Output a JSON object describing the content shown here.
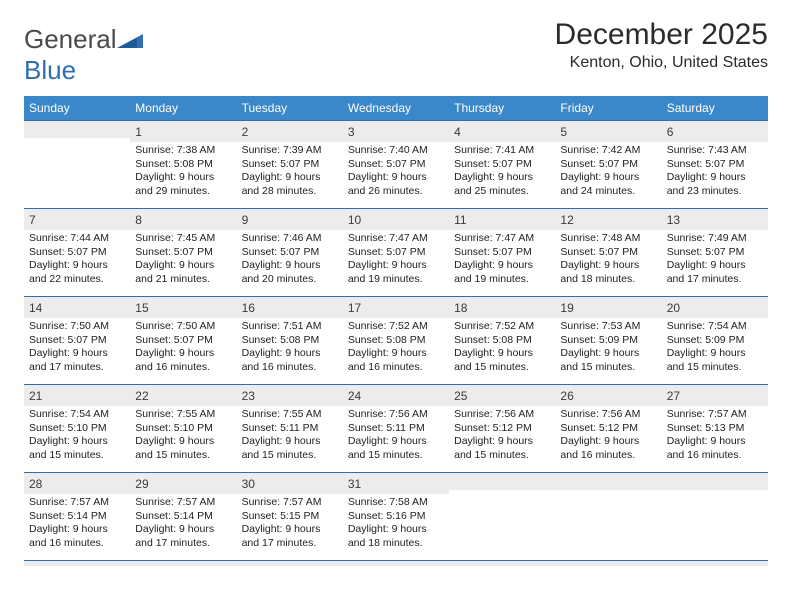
{
  "logo": {
    "word1": "General",
    "word2": "Blue"
  },
  "title": "December 2025",
  "location": "Kenton, Ohio, United States",
  "colors": {
    "header_bg": "#3a87c9",
    "header_text": "#ffffff",
    "border": "#2f6fb0",
    "daynum_bg": "#ececec"
  },
  "day_headers": [
    "Sunday",
    "Monday",
    "Tuesday",
    "Wednesday",
    "Thursday",
    "Friday",
    "Saturday"
  ],
  "weeks": [
    [
      {
        "blank": true
      },
      {
        "n": "1",
        "sunrise": "7:38 AM",
        "sunset": "5:08 PM",
        "dl1": "Daylight: 9 hours",
        "dl2": "and 29 minutes."
      },
      {
        "n": "2",
        "sunrise": "7:39 AM",
        "sunset": "5:07 PM",
        "dl1": "Daylight: 9 hours",
        "dl2": "and 28 minutes."
      },
      {
        "n": "3",
        "sunrise": "7:40 AM",
        "sunset": "5:07 PM",
        "dl1": "Daylight: 9 hours",
        "dl2": "and 26 minutes."
      },
      {
        "n": "4",
        "sunrise": "7:41 AM",
        "sunset": "5:07 PM",
        "dl1": "Daylight: 9 hours",
        "dl2": "and 25 minutes."
      },
      {
        "n": "5",
        "sunrise": "7:42 AM",
        "sunset": "5:07 PM",
        "dl1": "Daylight: 9 hours",
        "dl2": "and 24 minutes."
      },
      {
        "n": "6",
        "sunrise": "7:43 AM",
        "sunset": "5:07 PM",
        "dl1": "Daylight: 9 hours",
        "dl2": "and 23 minutes."
      }
    ],
    [
      {
        "n": "7",
        "sunrise": "7:44 AM",
        "sunset": "5:07 PM",
        "dl1": "Daylight: 9 hours",
        "dl2": "and 22 minutes."
      },
      {
        "n": "8",
        "sunrise": "7:45 AM",
        "sunset": "5:07 PM",
        "dl1": "Daylight: 9 hours",
        "dl2": "and 21 minutes."
      },
      {
        "n": "9",
        "sunrise": "7:46 AM",
        "sunset": "5:07 PM",
        "dl1": "Daylight: 9 hours",
        "dl2": "and 20 minutes."
      },
      {
        "n": "10",
        "sunrise": "7:47 AM",
        "sunset": "5:07 PM",
        "dl1": "Daylight: 9 hours",
        "dl2": "and 19 minutes."
      },
      {
        "n": "11",
        "sunrise": "7:47 AM",
        "sunset": "5:07 PM",
        "dl1": "Daylight: 9 hours",
        "dl2": "and 19 minutes."
      },
      {
        "n": "12",
        "sunrise": "7:48 AM",
        "sunset": "5:07 PM",
        "dl1": "Daylight: 9 hours",
        "dl2": "and 18 minutes."
      },
      {
        "n": "13",
        "sunrise": "7:49 AM",
        "sunset": "5:07 PM",
        "dl1": "Daylight: 9 hours",
        "dl2": "and 17 minutes."
      }
    ],
    [
      {
        "n": "14",
        "sunrise": "7:50 AM",
        "sunset": "5:07 PM",
        "dl1": "Daylight: 9 hours",
        "dl2": "and 17 minutes."
      },
      {
        "n": "15",
        "sunrise": "7:50 AM",
        "sunset": "5:07 PM",
        "dl1": "Daylight: 9 hours",
        "dl2": "and 16 minutes."
      },
      {
        "n": "16",
        "sunrise": "7:51 AM",
        "sunset": "5:08 PM",
        "dl1": "Daylight: 9 hours",
        "dl2": "and 16 minutes."
      },
      {
        "n": "17",
        "sunrise": "7:52 AM",
        "sunset": "5:08 PM",
        "dl1": "Daylight: 9 hours",
        "dl2": "and 16 minutes."
      },
      {
        "n": "18",
        "sunrise": "7:52 AM",
        "sunset": "5:08 PM",
        "dl1": "Daylight: 9 hours",
        "dl2": "and 15 minutes."
      },
      {
        "n": "19",
        "sunrise": "7:53 AM",
        "sunset": "5:09 PM",
        "dl1": "Daylight: 9 hours",
        "dl2": "and 15 minutes."
      },
      {
        "n": "20",
        "sunrise": "7:54 AM",
        "sunset": "5:09 PM",
        "dl1": "Daylight: 9 hours",
        "dl2": "and 15 minutes."
      }
    ],
    [
      {
        "n": "21",
        "sunrise": "7:54 AM",
        "sunset": "5:10 PM",
        "dl1": "Daylight: 9 hours",
        "dl2": "and 15 minutes."
      },
      {
        "n": "22",
        "sunrise": "7:55 AM",
        "sunset": "5:10 PM",
        "dl1": "Daylight: 9 hours",
        "dl2": "and 15 minutes."
      },
      {
        "n": "23",
        "sunrise": "7:55 AM",
        "sunset": "5:11 PM",
        "dl1": "Daylight: 9 hours",
        "dl2": "and 15 minutes."
      },
      {
        "n": "24",
        "sunrise": "7:56 AM",
        "sunset": "5:11 PM",
        "dl1": "Daylight: 9 hours",
        "dl2": "and 15 minutes."
      },
      {
        "n": "25",
        "sunrise": "7:56 AM",
        "sunset": "5:12 PM",
        "dl1": "Daylight: 9 hours",
        "dl2": "and 15 minutes."
      },
      {
        "n": "26",
        "sunrise": "7:56 AM",
        "sunset": "5:12 PM",
        "dl1": "Daylight: 9 hours",
        "dl2": "and 16 minutes."
      },
      {
        "n": "27",
        "sunrise": "7:57 AM",
        "sunset": "5:13 PM",
        "dl1": "Daylight: 9 hours",
        "dl2": "and 16 minutes."
      }
    ],
    [
      {
        "n": "28",
        "sunrise": "7:57 AM",
        "sunset": "5:14 PM",
        "dl1": "Daylight: 9 hours",
        "dl2": "and 16 minutes."
      },
      {
        "n": "29",
        "sunrise": "7:57 AM",
        "sunset": "5:14 PM",
        "dl1": "Daylight: 9 hours",
        "dl2": "and 17 minutes."
      },
      {
        "n": "30",
        "sunrise": "7:57 AM",
        "sunset": "5:15 PM",
        "dl1": "Daylight: 9 hours",
        "dl2": "and 17 minutes."
      },
      {
        "n": "31",
        "sunrise": "7:58 AM",
        "sunset": "5:16 PM",
        "dl1": "Daylight: 9 hours",
        "dl2": "and 18 minutes."
      },
      {
        "blank": true
      },
      {
        "blank": true
      },
      {
        "blank": true
      }
    ]
  ]
}
